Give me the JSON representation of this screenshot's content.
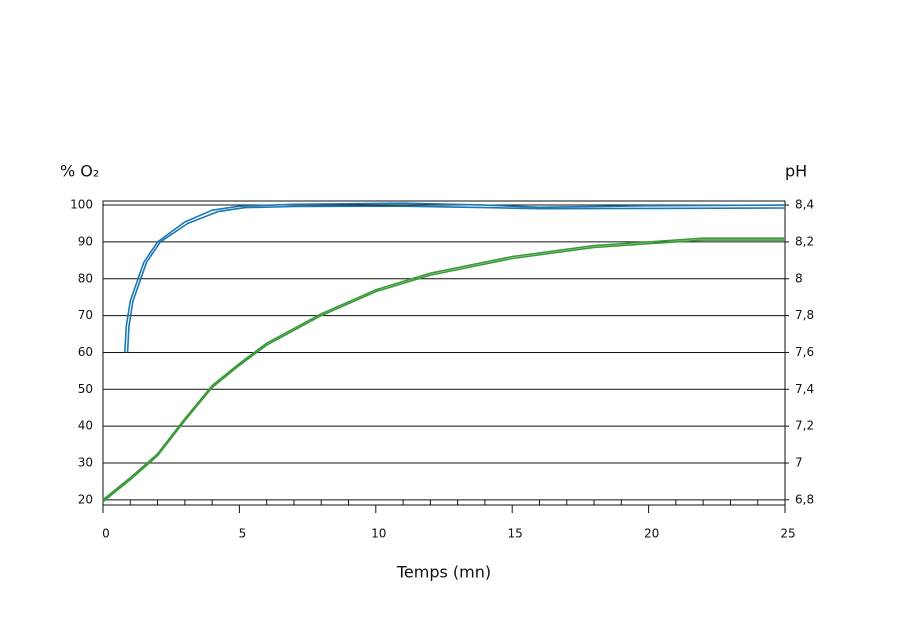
{
  "chart_data": {
    "type": "line",
    "y_label": "% O₂",
    "y2_label": "pH",
    "x_label": "Temps (mn)",
    "xlim": [
      0,
      25
    ],
    "xticks": [
      0,
      5,
      10,
      15,
      20,
      25
    ],
    "xminorticks": [
      1,
      2,
      3,
      4,
      6,
      7,
      8,
      9,
      11,
      12,
      13,
      14,
      16,
      17,
      18,
      19,
      21,
      22,
      23,
      24
    ],
    "ylim": [
      18.6,
      101.1
    ],
    "yticks": [
      20,
      30,
      40,
      50,
      60,
      70,
      80,
      90,
      100
    ],
    "y2lim": [
      6.772,
      8.422
    ],
    "y2ticks": [
      {
        "value": 6.8,
        "label": "6,8"
      },
      7,
      {
        "value": 7.2,
        "label": "7,2"
      },
      {
        "value": 7.4,
        "label": "7,4"
      },
      {
        "value": 7.6,
        "label": "7,6"
      },
      {
        "value": 7.8,
        "label": "7,8"
      },
      8,
      {
        "value": 8.2,
        "label": "8,2"
      },
      {
        "value": 8.4,
        "label": "8,4"
      }
    ],
    "grid": true,
    "series": [
      {
        "color": "#1a78b4",
        "x": [
          0.8,
          0.85,
          1,
          1.5,
          2,
          3,
          4,
          5,
          7,
          11,
          14,
          16,
          20,
          25
        ],
        "values": [
          60,
          67,
          74,
          84.5,
          90,
          95.4,
          98.6,
          99.7,
          100.2,
          100.5,
          100,
          99.4,
          99.8,
          100
        ]
      },
      {
        "color": "#1a78b4",
        "x": [
          0.9,
          0.95,
          1.1,
          1.6,
          2.1,
          3.1,
          4.2,
          5.2,
          7,
          11,
          14,
          16,
          20,
          25
        ],
        "values": [
          60,
          67,
          74,
          84.5,
          90,
          95,
          98.2,
          99.3,
          99.6,
          99.7,
          99.3,
          99.0,
          99.1,
          99.2
        ]
      },
      {
        "color": "#3a9a3a",
        "axis": "y2",
        "x": [
          0,
          1,
          2,
          3,
          4,
          5,
          6,
          8,
          10,
          12,
          15,
          18,
          20,
          22,
          25
        ],
        "values": [
          6.79,
          6.91,
          7.04,
          7.23,
          7.41,
          7.53,
          7.64,
          7.8,
          7.93,
          8.02,
          8.11,
          8.17,
          8.19,
          8.21,
          8.21
        ]
      },
      {
        "color": "#3a9a3a",
        "axis": "y2",
        "x": [
          0,
          1,
          2,
          3,
          4,
          5,
          6,
          8,
          10,
          12,
          15,
          18,
          20,
          22,
          25
        ],
        "values": [
          6.8,
          6.92,
          7.05,
          7.24,
          7.42,
          7.54,
          7.65,
          7.81,
          7.94,
          8.03,
          8.12,
          8.18,
          8.2,
          8.22,
          8.22
        ]
      }
    ]
  }
}
